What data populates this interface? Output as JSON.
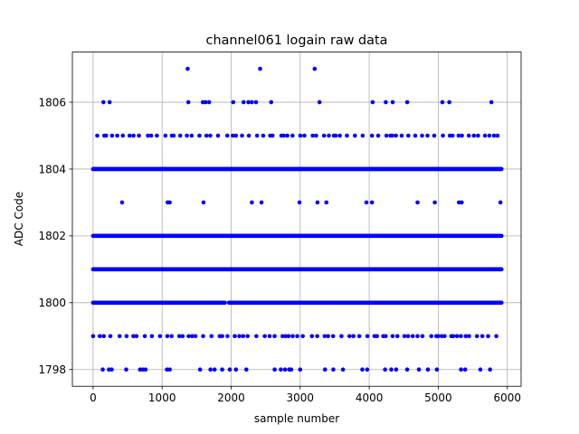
{
  "chart_data": {
    "type": "scatter",
    "title": "channel061 logain raw data",
    "xlabel": "sample number",
    "ylabel": "ADC Code",
    "xlim": [
      -300,
      6200
    ],
    "ylim": [
      1797.5,
      1807.5
    ],
    "xticks": [
      0,
      1000,
      2000,
      3000,
      4000,
      5000,
      6000
    ],
    "yticks": [
      1798,
      1800,
      1802,
      1804,
      1806
    ],
    "grid": true,
    "marker_color": "#0000ff",
    "n_samples": 5920,
    "levels": [
      {
        "value": 1804,
        "density": "continuous",
        "x_range": [
          0,
          5920
        ]
      },
      {
        "value": 1802,
        "density": "continuous",
        "x_range": [
          0,
          5920
        ]
      },
      {
        "value": 1801,
        "density": "continuous",
        "x_range": [
          0,
          5920
        ]
      },
      {
        "value": 1800,
        "density": "continuous",
        "x_range": [
          0,
          5920
        ],
        "gaps": [
          [
            1920,
            1960
          ]
        ]
      },
      {
        "value": 1799,
        "density": "sparse",
        "x_range": [
          0,
          5920
        ]
      },
      {
        "value": 1805,
        "density": "sparse",
        "x_range": [
          60,
          5900
        ]
      }
    ],
    "sparse_points": {
      "1807": [
        1370,
        2420,
        3210
      ],
      "1806": [
        150,
        240,
        1380,
        1590,
        1630,
        1680,
        2030,
        2180,
        2250,
        2300,
        2360,
        2580,
        3280,
        4050,
        4240,
        4340,
        4550,
        5060,
        5160,
        5770
      ],
      "1803": [
        420,
        1080,
        1110,
        1600,
        2300,
        2440,
        2990,
        3250,
        3380,
        3960,
        4040,
        4700,
        4950,
        5300,
        5340,
        5900
      ],
      "1798": [
        140,
        230,
        270,
        480,
        680,
        720,
        760,
        1070,
        1110,
        1550,
        1700,
        1760,
        1870,
        1980,
        2070,
        2220,
        2630,
        2720,
        2780,
        2840,
        2870,
        3000,
        3360,
        3480,
        3620,
        3900,
        3970,
        4230,
        4320,
        4390,
        4550,
        4720,
        4850,
        4980,
        5330,
        5390,
        5610,
        5750
      ]
    }
  }
}
